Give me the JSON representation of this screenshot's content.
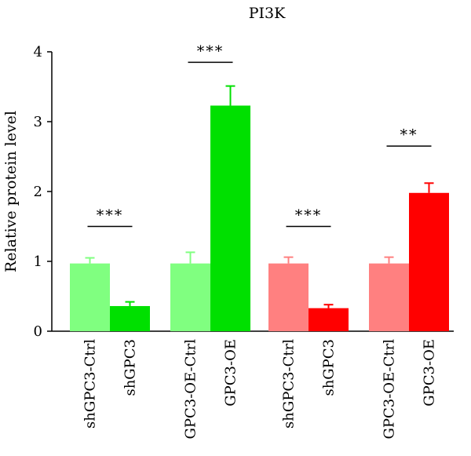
{
  "chart_data": {
    "type": "bar",
    "title": "PI3K",
    "xlabel": "",
    "ylabel": "Relative protein level",
    "ylim": [
      0,
      4
    ],
    "yticks": [
      0,
      1,
      2,
      3,
      4
    ],
    "grid": false,
    "legend": "none",
    "categories": [
      "shGPC3-Ctrl",
      "shGPC3",
      "GPC3-OE-Ctrl",
      "GPC3-OE",
      "shGPC3-Ctrl",
      "shGPC3",
      "GPC3-OE-Ctrl",
      "GPC3-OE"
    ],
    "values": [
      0.97,
      0.36,
      0.97,
      3.23,
      0.97,
      0.33,
      0.97,
      1.98
    ],
    "errors": [
      0.08,
      0.06,
      0.16,
      0.28,
      0.09,
      0.05,
      0.09,
      0.14
    ],
    "colors": [
      "#80FF80",
      "#00E000",
      "#80FF80",
      "#00E000",
      "#FF8080",
      "#FF0000",
      "#FF8080",
      "#FF0000"
    ],
    "significance": [
      {
        "pair": [
          0,
          1
        ],
        "label": "***",
        "y": 1.5
      },
      {
        "pair": [
          2,
          3
        ],
        "label": "***",
        "y": 3.85
      },
      {
        "pair": [
          4,
          5
        ],
        "label": "***",
        "y": 1.5
      },
      {
        "pair": [
          6,
          7
        ],
        "label": "**",
        "y": 2.65
      }
    ]
  }
}
